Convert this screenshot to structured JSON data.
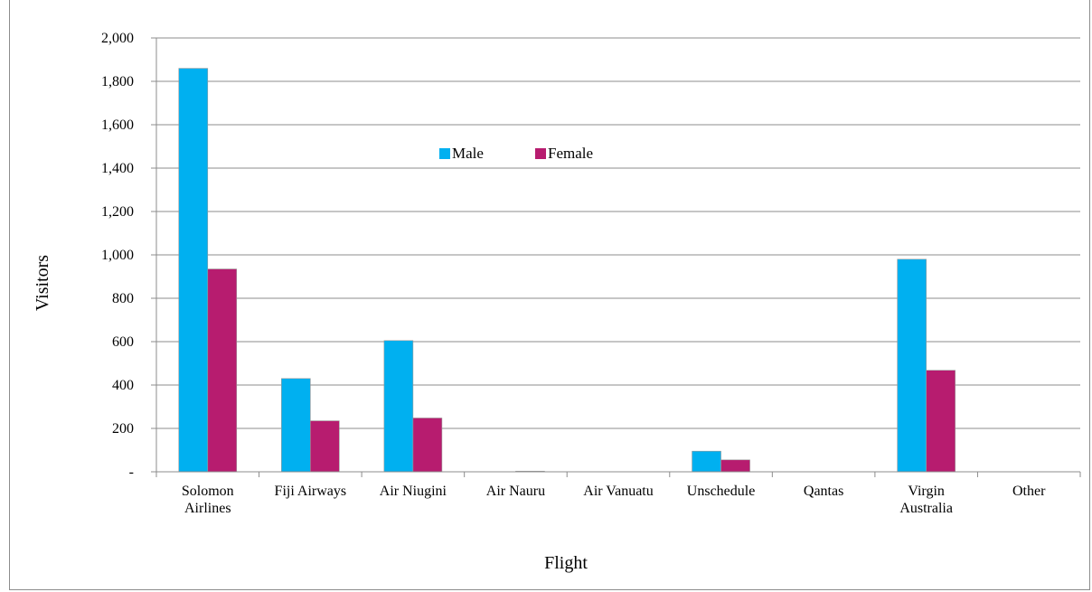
{
  "chart_data": {
    "type": "bar",
    "title": "",
    "xlabel": "Flight",
    "ylabel": "Visitors",
    "ylim": [
      0,
      2000
    ],
    "yticks": [
      0,
      200,
      400,
      600,
      800,
      1000,
      1200,
      1400,
      1600,
      1800,
      2000
    ],
    "ytick_labels": [
      "-",
      "200",
      "400",
      "600",
      "800",
      "1,000",
      "1,200",
      "1,400",
      "1,600",
      "1,800",
      "2,000"
    ],
    "categories": [
      [
        "Solomon",
        "Airlines"
      ],
      [
        "Fiji Airways"
      ],
      [
        "Air Niugini"
      ],
      [
        "Air Nauru"
      ],
      [
        "Air Vanuatu"
      ],
      [
        "Unschedule"
      ],
      [
        "Qantas"
      ],
      [
        "Virgin",
        "Australia"
      ],
      [
        "Other"
      ]
    ],
    "series": [
      {
        "name": "Male",
        "color": "#00b0f0",
        "values": [
          1860,
          430,
          605,
          0,
          0,
          95,
          0,
          980,
          0
        ]
      },
      {
        "name": "Female",
        "color": "#b71c6f",
        "values": [
          935,
          235,
          248,
          3,
          0,
          55,
          0,
          468,
          0
        ]
      }
    ],
    "grid": true,
    "legend_position": "inside-top-center",
    "axis_color": "#8c8c8c"
  }
}
